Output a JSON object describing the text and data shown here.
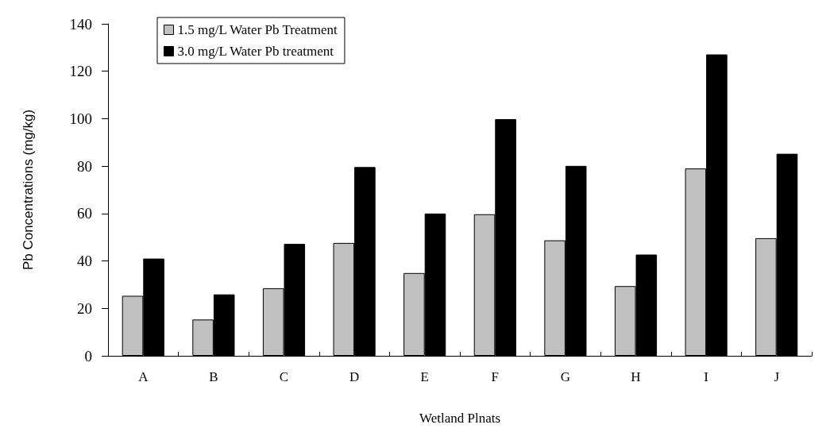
{
  "chart_data": {
    "type": "bar",
    "xlabel": "Wetland Plnats",
    "ylabel": "Pb Concentrations (mg/kg)",
    "categories": [
      "A",
      "B",
      "C",
      "D",
      "E",
      "F",
      "G",
      "H",
      "I",
      "J"
    ],
    "series": [
      {
        "name": "1.5 mg/L Water Pb Treatment",
        "color": "#c0c0c0",
        "values": [
          25.3,
          15.3,
          28.5,
          47.6,
          34.9,
          59.7,
          48.7,
          29.4,
          79.0,
          49.6
        ]
      },
      {
        "name": "3.0 mg/L Water Pb treatment",
        "color": "#000000",
        "values": [
          41.0,
          25.9,
          47.2,
          79.6,
          60.0,
          99.8,
          80.1,
          42.7,
          127.1,
          85.2
        ]
      }
    ],
    "ylim": [
      0,
      140
    ],
    "yticks": [
      0,
      20,
      40,
      60,
      80,
      100,
      120,
      140
    ],
    "grid": false,
    "legend": "top left"
  }
}
